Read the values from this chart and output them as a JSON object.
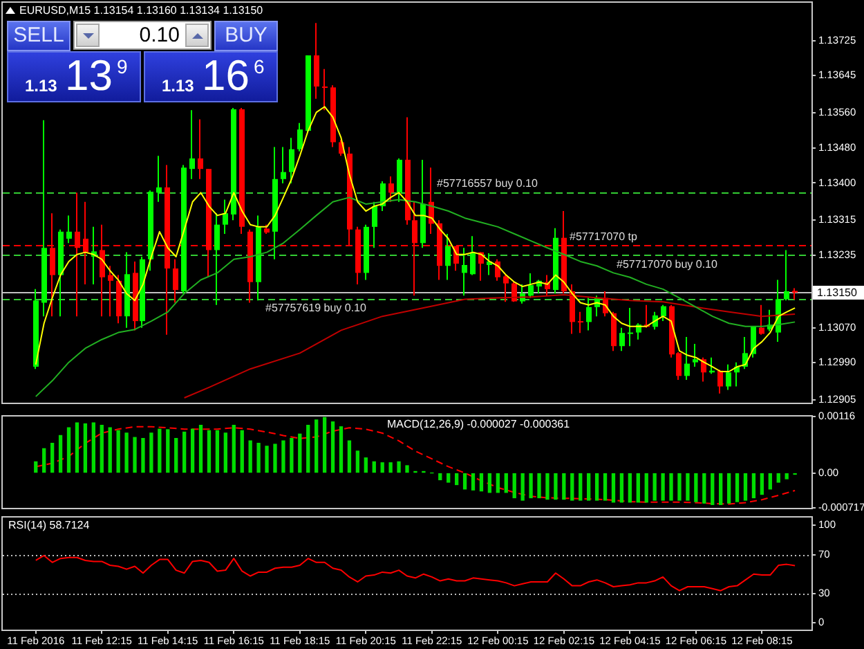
{
  "chart_data": [
    {
      "type": "candlestick",
      "title": "EURUSD,M15 1.13154 1.13160 1.13134 1.13150",
      "x": [
        "2016-02-11T10:15",
        "2016-02-11T10:30",
        "2016-02-11T10:45",
        "2016-02-11T11:00",
        "2016-02-11T11:15",
        "2016-02-11T11:30",
        "2016-02-11T11:45",
        "2016-02-11T12:00",
        "2016-02-11T12:15",
        "2016-02-11T12:30",
        "2016-02-11T12:45",
        "2016-02-11T13:00",
        "2016-02-11T13:15",
        "2016-02-11T13:30",
        "2016-02-11T13:45",
        "2016-02-11T14:00",
        "2016-02-11T14:15",
        "2016-02-11T14:30",
        "2016-02-11T14:45",
        "2016-02-11T15:00",
        "2016-02-11T15:15",
        "2016-02-11T15:30",
        "2016-02-11T15:45",
        "2016-02-11T16:00",
        "2016-02-11T16:15",
        "2016-02-11T16:30",
        "2016-02-11T16:45",
        "2016-02-11T17:00",
        "2016-02-11T17:15",
        "2016-02-11T17:30",
        "2016-02-11T17:45",
        "2016-02-11T18:00",
        "2016-02-11T18:15",
        "2016-02-11T18:30",
        "2016-02-11T18:45",
        "2016-02-11T19:00",
        "2016-02-11T19:15",
        "2016-02-11T19:30",
        "2016-02-11T19:45",
        "2016-02-11T20:00",
        "2016-02-11T20:15",
        "2016-02-11T20:30",
        "2016-02-11T20:45",
        "2016-02-11T21:00",
        "2016-02-11T21:15",
        "2016-02-11T21:30",
        "2016-02-11T21:45",
        "2016-02-11T22:00",
        "2016-02-11T22:15",
        "2016-02-11T22:30",
        "2016-02-11T22:45",
        "2016-02-11T23:00",
        "2016-02-11T23:15",
        "2016-02-11T23:30",
        "2016-02-11T23:45",
        "2016-02-12T00:00",
        "2016-02-12T00:15",
        "2016-02-12T00:30",
        "2016-02-12T00:45",
        "2016-02-12T01:00",
        "2016-02-12T01:15",
        "2016-02-12T01:30",
        "2016-02-12T01:45",
        "2016-02-12T02:00",
        "2016-02-12T02:15",
        "2016-02-12T02:30",
        "2016-02-12T02:45",
        "2016-02-12T03:00",
        "2016-02-12T03:15",
        "2016-02-12T03:30",
        "2016-02-12T03:45",
        "2016-02-12T04:00",
        "2016-02-12T04:15",
        "2016-02-12T04:30",
        "2016-02-12T04:45",
        "2016-02-12T05:00",
        "2016-02-12T05:15",
        "2016-02-12T05:30",
        "2016-02-12T05:45",
        "2016-02-12T06:00",
        "2016-02-12T06:15",
        "2016-02-12T06:30",
        "2016-02-12T06:45",
        "2016-02-12T07:00",
        "2016-02-12T07:15",
        "2016-02-12T07:30",
        "2016-02-12T07:45",
        "2016-02-12T08:00",
        "2016-02-12T08:15",
        "2016-02-12T08:30",
        "2016-02-12T08:45",
        "2016-02-12T09:00",
        "2016-02-12T09:15"
      ],
      "ohlc": [
        [
          1.12981,
          1.13158,
          1.12976,
          1.13132
        ],
        [
          1.13127,
          1.13543,
          1.13096,
          1.13252
        ],
        [
          1.13252,
          1.13331,
          1.13096,
          1.1319
        ],
        [
          1.1319,
          1.13294,
          1.13096,
          1.13289
        ],
        [
          1.13273,
          1.13326,
          1.13263,
          1.13289
        ],
        [
          1.13289,
          1.13378,
          1.13096,
          1.13252
        ],
        [
          1.13273,
          1.13357,
          1.13169,
          1.13242
        ],
        [
          1.13232,
          1.133,
          1.13169,
          1.13244
        ],
        [
          1.13247,
          1.13305,
          1.13096,
          1.13185
        ],
        [
          1.1319,
          1.13211,
          1.13096,
          1.13177
        ],
        [
          1.13177,
          1.1319,
          1.1308,
          1.13096
        ],
        [
          1.13096,
          1.13242,
          1.1307,
          1.13192
        ],
        [
          1.13195,
          1.13221,
          1.13064,
          1.13085
        ],
        [
          1.13085,
          1.13232,
          1.1307,
          1.13226
        ],
        [
          1.13226,
          1.13383,
          1.132,
          1.1338
        ],
        [
          1.13378,
          1.13462,
          1.13357,
          1.1339
        ],
        [
          1.1339,
          1.13441,
          1.13054,
          1.13205
        ],
        [
          1.13205,
          1.13226,
          1.13127,
          1.13156
        ],
        [
          1.13153,
          1.13441,
          1.13148,
          1.13435
        ],
        [
          1.13432,
          1.13566,
          1.13409,
          1.13456
        ],
        [
          1.13456,
          1.13545,
          1.13409,
          1.13432
        ],
        [
          1.13432,
          1.13432,
          1.13185,
          1.13247
        ],
        [
          1.13247,
          1.13331,
          1.13122,
          1.13305
        ],
        [
          1.13305,
          1.13362,
          1.13284,
          1.13331
        ],
        [
          1.13328,
          1.13571,
          1.13315,
          1.13568
        ],
        [
          1.13568,
          1.13571,
          1.13284,
          1.133
        ],
        [
          1.13289,
          1.13294,
          1.13127,
          1.13174
        ],
        [
          1.13174,
          1.13326,
          1.13132,
          1.133
        ],
        [
          1.13296,
          1.13305,
          1.13284,
          1.13287
        ],
        [
          1.13289,
          1.13482,
          1.13226,
          1.13409
        ],
        [
          1.13409,
          1.13482,
          1.13399,
          1.13425
        ],
        [
          1.13425,
          1.13503,
          1.13399,
          1.13477
        ],
        [
          1.13477,
          1.13537,
          1.13472,
          1.13522
        ],
        [
          1.13519,
          1.13691,
          1.13514,
          1.13691
        ],
        [
          1.13691,
          1.13765,
          1.13592,
          1.1362
        ],
        [
          1.1362,
          1.1366,
          1.13566,
          1.13618
        ],
        [
          1.13618,
          1.13623,
          1.13482,
          1.13493
        ],
        [
          1.13493,
          1.13498,
          1.13462,
          1.13467
        ],
        [
          1.13467,
          1.13482,
          1.13256,
          1.13294
        ],
        [
          1.13294,
          1.133,
          1.13169,
          1.13195
        ],
        [
          1.13195,
          1.13305,
          1.13179,
          1.133
        ],
        [
          1.133,
          1.13357,
          1.13252,
          1.13347
        ],
        [
          1.13347,
          1.13404,
          1.13336,
          1.13399
        ],
        [
          1.13399,
          1.13415,
          1.13357,
          1.13378
        ],
        [
          1.13378,
          1.13456,
          1.13357,
          1.13453
        ],
        [
          1.13453,
          1.1355,
          1.13305,
          1.13315
        ],
        [
          1.13315,
          1.13357,
          1.13143,
          1.13263
        ],
        [
          1.13263,
          1.13453,
          1.13252,
          1.13352
        ],
        [
          1.13357,
          1.13435,
          1.13284,
          1.13307
        ],
        [
          1.13308,
          1.13315,
          1.13179,
          1.13211
        ],
        [
          1.13211,
          1.13284,
          1.13179,
          1.13256
        ],
        [
          1.13256,
          1.13256,
          1.132,
          1.13216
        ],
        [
          1.13195,
          1.13252,
          1.13143,
          1.13213
        ],
        [
          1.13192,
          1.13279,
          1.1319,
          1.13242
        ],
        [
          1.13242,
          1.13242,
          1.13177,
          1.13216
        ],
        [
          1.13213,
          1.1324,
          1.1319,
          1.13221
        ],
        [
          1.13221,
          1.13226,
          1.13177,
          1.13185
        ],
        [
          1.13187,
          1.1319,
          1.13129,
          1.13171
        ],
        [
          1.13171,
          1.13174,
          1.13129,
          1.1313
        ],
        [
          1.1313,
          1.13169,
          1.13125,
          1.13148
        ],
        [
          1.13143,
          1.13194,
          1.13138,
          1.13167
        ],
        [
          1.13164,
          1.13179,
          1.13148,
          1.13177
        ],
        [
          1.13174,
          1.1319,
          1.13143,
          1.13158
        ],
        [
          1.13156,
          1.13297,
          1.13148,
          1.13275
        ],
        [
          1.13275,
          1.13336,
          1.13148,
          1.13153
        ],
        [
          1.13153,
          1.13169,
          1.13056,
          1.13083
        ],
        [
          1.13085,
          1.13106,
          1.13058,
          1.13082
        ],
        [
          1.13083,
          1.13138,
          1.13064,
          1.13117
        ],
        [
          1.13117,
          1.13143,
          1.13096,
          1.13138
        ],
        [
          1.13138,
          1.13153,
          1.13096,
          1.13103
        ],
        [
          1.13103,
          1.13106,
          1.13017,
          1.13028
        ],
        [
          1.13028,
          1.1307,
          1.13017,
          1.13058
        ],
        [
          1.13056,
          1.13115,
          1.13028,
          1.13059
        ],
        [
          1.13059,
          1.1308,
          1.13043,
          1.13077
        ],
        [
          1.13077,
          1.13122,
          1.1307,
          1.13072
        ],
        [
          1.13072,
          1.13106,
          1.13066,
          1.13098
        ],
        [
          1.13096,
          1.13122,
          1.13085,
          1.13119
        ],
        [
          1.13119,
          1.13122,
          1.13002,
          1.13009
        ],
        [
          1.13012,
          1.13014,
          1.12951,
          1.1296
        ],
        [
          1.1296,
          1.13049,
          1.12951,
          1.12988
        ],
        [
          1.12991,
          1.13033,
          1.12981,
          1.12998
        ],
        [
          1.12998,
          1.13002,
          1.12947,
          1.12968
        ],
        [
          1.12968,
          1.13002,
          1.12965,
          1.12972
        ],
        [
          1.12972,
          1.12974,
          1.1292,
          1.12936
        ],
        [
          1.12936,
          1.12986,
          1.12928,
          1.12968
        ],
        [
          1.12968,
          1.12991,
          1.12936,
          1.12981
        ],
        [
          1.12981,
          1.13049,
          1.12976,
          1.13012
        ],
        [
          1.1301,
          1.13073,
          1.13002,
          1.13073
        ],
        [
          1.1307,
          1.13122,
          1.13054,
          1.13056
        ],
        [
          1.13066,
          1.13111,
          1.13062,
          1.13077
        ],
        [
          1.13059,
          1.13179,
          1.13038,
          1.13135
        ],
        [
          1.13135,
          1.13247,
          1.13132,
          1.13153
        ],
        [
          1.13154,
          1.1316,
          1.13134,
          1.1315
        ]
      ],
      "colors": [
        "#00ff00",
        "#00ff00",
        "#ff0000",
        "#00ff00",
        "#00ff00",
        "#ff0000",
        "#ff0000",
        "#00ff00",
        "#ff0000",
        "#ff0000",
        "#ff0000",
        "#00ff00",
        "#ff0000",
        "#00ff00",
        "#00ff00",
        "#00ff00",
        "#ff0000",
        "#ff0000",
        "#00ff00",
        "#00ff00",
        "#ff0000",
        "#ff0000",
        "#00ff00",
        "#00ff00",
        "#00ff00",
        "#ff0000",
        "#ff0000",
        "#00ff00",
        "#ff0000",
        "#00ff00",
        "#00ff00",
        "#00ff00",
        "#00ff00",
        "#00ff00",
        "#ff0000",
        "#ff0000",
        "#ff0000",
        "#ff0000",
        "#ff0000",
        "#ff0000",
        "#00ff00",
        "#00ff00",
        "#00ff00",
        "#ff0000",
        "#00ff00",
        "#ff0000",
        "#ff0000",
        "#00ff00",
        "#ff0000",
        "#ff0000",
        "#00ff00",
        "#ff0000",
        "#00ff00",
        "#00ff00",
        "#ff0000",
        "#00ff00",
        "#ff0000",
        "#ff0000",
        "#ff0000",
        "#00ff00",
        "#00ff00",
        "#00ff00",
        "#ff0000",
        "#00ff00",
        "#ff0000",
        "#ff0000",
        "#ff0000",
        "#00ff00",
        "#00ff00",
        "#ff0000",
        "#ff0000",
        "#00ff00",
        "#00ff00",
        "#00ff00",
        "#ff0000",
        "#00ff00",
        "#00ff00",
        "#ff0000",
        "#ff0000",
        "#00ff00",
        "#00ff00",
        "#ff0000",
        "#00ff00",
        "#ff0000",
        "#00ff00",
        "#00ff00",
        "#00ff00",
        "#00ff00",
        "#ff0000",
        "#00ff00",
        "#00ff00",
        "#00ff00",
        "#ff0000"
      ],
      "series": [
        {
          "type": "line",
          "color": "#ffff00",
          "values": [
            1.12986,
            1.1308,
            1.13138,
            1.1319,
            1.13221,
            1.13237,
            1.13242,
            1.13237,
            1.13226,
            1.132,
            1.13179,
            1.13148,
            1.13132,
            1.13169,
            1.13232,
            1.13289,
            1.13252,
            1.13232,
            1.13294,
            1.13357,
            1.13378,
            1.13347,
            1.13326,
            1.13331,
            1.13378,
            1.13336,
            1.13305,
            1.133,
            1.133,
            1.13326,
            1.13367,
            1.13409,
            1.13462,
            1.13519,
            1.13561,
            1.13574,
            1.1355,
            1.13503,
            1.1342,
            1.13357,
            1.13336,
            1.13347,
            1.13352,
            1.13367,
            1.13378,
            1.13357,
            1.13326,
            1.13326,
            1.1332,
            1.13294,
            1.13273,
            1.13237,
            1.13237,
            1.13242,
            1.13237,
            1.13221,
            1.13211,
            1.1319,
            1.13174,
            1.13164,
            1.13169,
            1.13174,
            1.13169,
            1.1319,
            1.13174,
            1.13148,
            1.13127,
            1.13122,
            1.13127,
            1.13122,
            1.13096,
            1.1308,
            1.13073,
            1.13073,
            1.13073,
            1.13085,
            1.13096,
            1.13085,
            1.13017,
            1.13007,
            1.13002,
            1.12991,
            1.12981,
            1.1297,
            1.1297,
            1.12981,
            1.12986,
            1.13023,
            1.13038,
            1.13059,
            1.13096,
            1.13106,
            1.13115
          ]
        },
        {
          "type": "line",
          "color": "#22b022",
          "x": [
            "2016-02-11T10:15",
            "2016-02-11T10:45",
            "2016-02-11T11:15",
            "2016-02-11T11:45",
            "2016-02-11T12:15",
            "2016-02-11T12:45",
            "2016-02-11T13:15",
            "2016-02-11T13:45",
            "2016-02-11T14:15",
            "2016-02-11T14:45",
            "2016-02-11T15:15",
            "2016-02-11T15:45",
            "2016-02-11T16:15",
            "2016-02-11T16:45",
            "2016-02-11T17:15",
            "2016-02-11T17:45",
            "2016-02-11T18:15",
            "2016-02-11T18:45",
            "2016-02-11T19:15",
            "2016-02-11T19:45",
            "2016-02-11T20:15",
            "2016-02-11T20:45",
            "2016-02-11T21:15",
            "2016-02-11T21:45",
            "2016-02-11T22:15",
            "2016-02-11T22:45",
            "2016-02-11T23:15",
            "2016-02-11T23:45",
            "2016-02-12T00:15",
            "2016-02-12T00:45",
            "2016-02-12T01:15",
            "2016-02-12T01:45",
            "2016-02-12T02:15",
            "2016-02-12T02:45",
            "2016-02-12T03:15",
            "2016-02-12T03:45",
            "2016-02-12T04:15",
            "2016-02-12T04:45",
            "2016-02-12T05:15",
            "2016-02-12T05:45",
            "2016-02-12T06:15",
            "2016-02-12T06:45",
            "2016-02-12T07:15",
            "2016-02-12T07:45",
            "2016-02-12T08:15",
            "2016-02-12T08:45",
            "2016-02-12T09:15"
          ],
          "values": [
            1.12913,
            1.12949,
            1.12991,
            1.13023,
            1.13043,
            1.13059,
            1.13066,
            1.13085,
            1.13106,
            1.13148,
            1.13179,
            1.13195,
            1.13226,
            1.13232,
            1.13242,
            1.13263,
            1.13294,
            1.13326,
            1.13357,
            1.13367,
            1.13352,
            1.13357,
            1.13362,
            1.13357,
            1.13347,
            1.13336,
            1.1332,
            1.1331,
            1.133,
            1.13284,
            1.13268,
            1.13252,
            1.13237,
            1.13221,
            1.13211,
            1.13195,
            1.13185,
            1.13169,
            1.13158,
            1.13138,
            1.13117,
            1.13096,
            1.1308,
            1.13073,
            1.13073,
            1.13077,
            1.13083
          ]
        },
        {
          "type": "line",
          "color": "#c00000",
          "x": [
            "2016-02-11T14:45",
            "2016-02-11T15:30",
            "2016-02-11T16:45",
            "2016-02-11T18:15",
            "2016-02-11T19:30",
            "2016-02-11T20:45",
            "2016-02-11T22:15",
            "2016-02-11T23:15",
            "2016-02-12T00:15",
            "2016-02-12T01:15",
            "2016-02-12T02:15",
            "2016-02-12T03:15",
            "2016-02-12T04:15",
            "2016-02-12T05:15",
            "2016-02-12T06:15",
            "2016-02-12T07:15",
            "2016-02-12T08:15",
            "2016-02-12T09:15"
          ],
          "values": [
            1.1291,
            1.12934,
            1.12976,
            1.13012,
            1.13064,
            1.13096,
            1.13119,
            1.13135,
            1.13138,
            1.1314,
            1.13145,
            1.13138,
            1.13132,
            1.13129,
            1.13117,
            1.13106,
            1.13096,
            1.13101
          ]
        }
      ],
      "xlim": [
        "2016-02-11T09:15",
        "2016-02-12T09:45"
      ],
      "ylim": [
        1.12899,
        1.13811
      ],
      "yticks": [
        1.12905,
        {
          "value": 1.1299,
          "label": "1.12990"
        },
        {
          "value": 1.1307,
          "label": "1.13070"
        },
        1.13235,
        1.13315,
        {
          "value": 1.134,
          "label": "1.13400"
        },
        {
          "value": 1.1348,
          "label": "1.13480"
        },
        {
          "value": 1.1356,
          "label": "1.13560"
        },
        1.13645,
        1.13725
      ],
      "ref_lines": [
        {
          "axis": "y",
          "value": 1.1338,
          "label": "#57716557 buy 0.10",
          "color": "#33cc33",
          "line_style": "dashed"
        },
        {
          "axis": "y",
          "value": 1.13258,
          "label": "#57717070 tp",
          "color": "#ff0000",
          "line_style": "dashed"
        },
        {
          "axis": "y",
          "value": 1.13236,
          "label": "#57717070 buy 0.10",
          "color": "#33cc33",
          "line_style": "dashed"
        },
        {
          "axis": "y",
          "value": 1.13136,
          "label": "#57757619 buy 0.10",
          "color": "#33cc33",
          "line_style": "dashed"
        },
        {
          "axis": "y",
          "value": 1.1315,
          "label": "1.13150",
          "color": "#c0c0c0"
        }
      ],
      "annotations": [
        "SELL",
        "0.10",
        "BUY",
        "1.13 13$^{9}$",
        "1.13 16$^{6}$"
      ],
      "tick_labels": "y"
    },
    {
      "type": "bar",
      "title": "MACD(12,26,9) -0.000027 -0.000361",
      "x": [
        "2016-02-11T10:15",
        "2016-02-11T10:30",
        "2016-02-11T10:45",
        "2016-02-11T11:00",
        "2016-02-11T11:15",
        "2016-02-11T11:30",
        "2016-02-11T11:45",
        "2016-02-11T12:00",
        "2016-02-11T12:15",
        "2016-02-11T12:30",
        "2016-02-11T12:45",
        "2016-02-11T13:00",
        "2016-02-11T13:15",
        "2016-02-11T13:30",
        "2016-02-11T13:45",
        "2016-02-11T14:00",
        "2016-02-11T14:15",
        "2016-02-11T14:30",
        "2016-02-11T14:45",
        "2016-02-11T15:00",
        "2016-02-11T15:15",
        "2016-02-11T15:30",
        "2016-02-11T15:45",
        "2016-02-11T16:00",
        "2016-02-11T16:15",
        "2016-02-11T16:30",
        "2016-02-11T16:45",
        "2016-02-11T17:00",
        "2016-02-11T17:15",
        "2016-02-11T17:30",
        "2016-02-11T17:45",
        "2016-02-11T18:00",
        "2016-02-11T18:15",
        "2016-02-11T18:30",
        "2016-02-11T18:45",
        "2016-02-11T19:00",
        "2016-02-11T19:15",
        "2016-02-11T19:30",
        "2016-02-11T19:45",
        "2016-02-11T20:00",
        "2016-02-11T20:15",
        "2016-02-11T20:30",
        "2016-02-11T20:45",
        "2016-02-11T21:00",
        "2016-02-11T21:15",
        "2016-02-11T21:30",
        "2016-02-11T21:45",
        "2016-02-11T22:00",
        "2016-02-11T22:15",
        "2016-02-11T22:30",
        "2016-02-11T22:45",
        "2016-02-11T23:00",
        "2016-02-11T23:15",
        "2016-02-11T23:30",
        "2016-02-11T23:45",
        "2016-02-12T00:00",
        "2016-02-12T00:15",
        "2016-02-12T00:30",
        "2016-02-12T00:45",
        "2016-02-12T01:00",
        "2016-02-12T01:15",
        "2016-02-12T01:30",
        "2016-02-12T01:45",
        "2016-02-12T02:00",
        "2016-02-12T02:15",
        "2016-02-12T02:30",
        "2016-02-12T02:45",
        "2016-02-12T03:00",
        "2016-02-12T03:15",
        "2016-02-12T03:30",
        "2016-02-12T03:45",
        "2016-02-12T04:00",
        "2016-02-12T04:15",
        "2016-02-12T04:30",
        "2016-02-12T04:45",
        "2016-02-12T05:00",
        "2016-02-12T05:15",
        "2016-02-12T05:30",
        "2016-02-12T05:45",
        "2016-02-12T06:00",
        "2016-02-12T06:15",
        "2016-02-12T06:30",
        "2016-02-12T06:45",
        "2016-02-12T07:00",
        "2016-02-12T07:15",
        "2016-02-12T07:30",
        "2016-02-12T07:45",
        "2016-02-12T08:00",
        "2016-02-12T08:15",
        "2016-02-12T08:30",
        "2016-02-12T08:45",
        "2016-02-12T09:00",
        "2016-02-12T09:15"
      ],
      "series": [
        {
          "color": "#00dd00",
          "values": [
            0.00023,
            0.0005,
            0.00061,
            0.00077,
            0.00093,
            0.00103,
            0.00101,
            0.00103,
            0.00098,
            0.00093,
            0.00087,
            0.00082,
            0.00073,
            0.00071,
            0.00082,
            0.0009,
            0.00089,
            0.00071,
            0.00084,
            0.0009,
            0.00098,
            0.00087,
            0.00087,
            0.00082,
            0.00098,
            0.00087,
            0.00066,
            0.00061,
            0.00055,
            0.00059,
            0.00066,
            0.00071,
            0.0008,
            0.00098,
            0.00109,
            0.00114,
            0.00105,
            0.00095,
            0.00066,
            0.00045,
            0.00031,
            0.00023,
            0.00021,
            0.00021,
            0.00023,
            0.00015,
            3e-05,
            3e-05,
            0,
            -0.00014,
            -0.00019,
            -0.00024,
            -0.00033,
            -0.00035,
            -0.00037,
            -0.0004,
            -0.0004,
            -0.0004,
            -0.00051,
            -0.00056,
            -0.00051,
            -0.00051,
            -0.00054,
            -0.00054,
            -0.00054,
            -0.00056,
            -0.00056,
            -0.00056,
            -0.00056,
            -0.00056,
            -0.0006,
            -0.0006,
            -0.0006,
            -0.0006,
            -0.0006,
            -0.00056,
            -0.00056,
            -0.00056,
            -0.00056,
            -0.00056,
            -0.00059,
            -0.00062,
            -0.00065,
            -0.00065,
            -0.00062,
            -0.00059,
            -0.00056,
            -0.00051,
            -0.00044,
            -0.00033,
            -0.00019,
            -0.00012,
            -2.7e-05
          ]
        },
        {
          "type": "line",
          "color": "#ff0000",
          "line_style": "dashed",
          "x": [
            "2016-02-11T10:15",
            "2016-02-11T10:45",
            "2016-02-11T11:15",
            "2016-02-11T11:45",
            "2016-02-11T12:15",
            "2016-02-11T12:45",
            "2016-02-11T13:15",
            "2016-02-11T13:45",
            "2016-02-11T14:15",
            "2016-02-11T14:45",
            "2016-02-11T15:15",
            "2016-02-11T15:45",
            "2016-02-11T16:15",
            "2016-02-11T16:45",
            "2016-02-11T17:15",
            "2016-02-11T17:45",
            "2016-02-11T18:15",
            "2016-02-11T18:45",
            "2016-02-11T19:15",
            "2016-02-11T19:45",
            "2016-02-11T20:15",
            "2016-02-11T20:45",
            "2016-02-11T21:15",
            "2016-02-11T21:45",
            "2016-02-11T22:15",
            "2016-02-11T22:45",
            "2016-02-11T23:15",
            "2016-02-11T23:45",
            "2016-02-12T00:15",
            "2016-02-12T00:45",
            "2016-02-12T01:15",
            "2016-02-12T01:45",
            "2016-02-12T02:15",
            "2016-02-12T02:45",
            "2016-02-12T03:15",
            "2016-02-12T03:45",
            "2016-02-12T04:15",
            "2016-02-12T04:45",
            "2016-02-12T05:15",
            "2016-02-12T05:45",
            "2016-02-12T06:15",
            "2016-02-12T06:45",
            "2016-02-12T07:15",
            "2016-02-12T07:45",
            "2016-02-12T08:15",
            "2016-02-12T08:45",
            "2016-02-12T09:15"
          ],
          "values": [
            0.00013,
            0.0002,
            0.00034,
            0.00061,
            0.00082,
            0.0009,
            0.00095,
            0.00095,
            0.00093,
            0.0009,
            0.0009,
            0.0009,
            0.00093,
            0.0009,
            0.00084,
            0.00077,
            0.00071,
            0.00074,
            0.00086,
            0.00093,
            0.0009,
            0.00082,
            0.00066,
            0.00045,
            0.00029,
            0.00013,
            0,
            -0.00016,
            -0.0003,
            -0.0004,
            -0.00048,
            -0.00051,
            -0.00052,
            -0.00053,
            -0.00054,
            -0.00056,
            -0.00059,
            -0.0006,
            -0.0006,
            -0.0006,
            -0.00061,
            -0.00063,
            -0.00064,
            -0.00061,
            -0.00055,
            -0.00046,
            -0.000361
          ]
        }
      ],
      "xlim": [
        "2016-02-11T09:15",
        "2016-02-12T09:45"
      ],
      "ylim": [
        -0.000717,
        0.00116
      ],
      "yticks": [
        -0.000717,
        {
          "value": 0,
          "label": "0.00"
        },
        0.00116
      ],
      "tick_labels": "y"
    },
    {
      "type": "line",
      "title": "RSI(14) 58.7124",
      "x": [
        "2016-02-11T10:15",
        "2016-02-11T10:30",
        "2016-02-11T10:45",
        "2016-02-11T11:00",
        "2016-02-11T11:15",
        "2016-02-11T11:30",
        "2016-02-11T11:45",
        "2016-02-11T12:00",
        "2016-02-11T12:15",
        "2016-02-11T12:30",
        "2016-02-11T12:45",
        "2016-02-11T13:00",
        "2016-02-11T13:15",
        "2016-02-11T13:30",
        "2016-02-11T13:45",
        "2016-02-11T14:00",
        "2016-02-11T14:15",
        "2016-02-11T14:30",
        "2016-02-11T14:45",
        "2016-02-11T15:00",
        "2016-02-11T15:15",
        "2016-02-11T15:30",
        "2016-02-11T15:45",
        "2016-02-11T16:00",
        "2016-02-11T16:15",
        "2016-02-11T16:30",
        "2016-02-11T16:45",
        "2016-02-11T17:00",
        "2016-02-11T17:15",
        "2016-02-11T17:30",
        "2016-02-11T17:45",
        "2016-02-11T18:00",
        "2016-02-11T18:15",
        "2016-02-11T18:30",
        "2016-02-11T18:45",
        "2016-02-11T19:00",
        "2016-02-11T19:15",
        "2016-02-11T19:30",
        "2016-02-11T19:45",
        "2016-02-11T20:00",
        "2016-02-11T20:15",
        "2016-02-11T20:30",
        "2016-02-11T20:45",
        "2016-02-11T21:00",
        "2016-02-11T21:15",
        "2016-02-11T21:30",
        "2016-02-11T21:45",
        "2016-02-11T22:00",
        "2016-02-11T22:15",
        "2016-02-11T22:30",
        "2016-02-11T22:45",
        "2016-02-11T23:00",
        "2016-02-11T23:15",
        "2016-02-11T23:30",
        "2016-02-11T23:45",
        "2016-02-12T00:00",
        "2016-02-12T00:15",
        "2016-02-12T00:30",
        "2016-02-12T00:45",
        "2016-02-12T01:00",
        "2016-02-12T01:15",
        "2016-02-12T01:30",
        "2016-02-12T01:45",
        "2016-02-12T02:00",
        "2016-02-12T02:15",
        "2016-02-12T02:30",
        "2016-02-12T02:45",
        "2016-02-12T03:00",
        "2016-02-12T03:15",
        "2016-02-12T03:30",
        "2016-02-12T03:45",
        "2016-02-12T04:00",
        "2016-02-12T04:15",
        "2016-02-12T04:30",
        "2016-02-12T04:45",
        "2016-02-12T05:00",
        "2016-02-12T05:15",
        "2016-02-12T05:30",
        "2016-02-12T05:45",
        "2016-02-12T06:00",
        "2016-02-12T06:15",
        "2016-02-12T06:30",
        "2016-02-12T06:45",
        "2016-02-12T07:00",
        "2016-02-12T07:15",
        "2016-02-12T07:30",
        "2016-02-12T07:45",
        "2016-02-12T08:00",
        "2016-02-12T08:15",
        "2016-02-12T08:30",
        "2016-02-12T08:45",
        "2016-02-12T09:00",
        "2016-02-12T09:15"
      ],
      "series": [
        {
          "color": "#ff0000",
          "values": [
            64,
            69,
            62,
            66,
            67,
            67,
            64,
            63,
            63,
            59,
            58,
            55,
            58,
            51,
            59,
            65,
            65,
            54,
            51,
            63,
            64,
            62,
            53,
            54,
            66,
            53,
            48,
            52,
            52,
            56,
            57,
            57,
            59,
            66,
            62,
            62,
            56,
            54,
            47,
            42,
            48,
            49,
            52,
            51,
            54,
            48,
            46,
            50,
            47,
            43,
            45,
            43,
            43,
            46,
            45,
            44,
            43,
            41,
            38,
            40,
            42,
            42,
            42,
            51,
            45,
            38,
            38,
            42,
            44,
            41,
            37,
            38,
            39,
            41,
            41,
            43,
            47,
            38,
            33,
            37,
            37,
            37,
            35,
            33,
            37,
            38,
            44,
            50,
            49,
            49,
            59,
            60,
            58.7124
          ]
        }
      ],
      "xlim": [
        "2016-02-11T09:15",
        "2016-02-12T09:45"
      ],
      "ylim": [
        -7,
        108
      ],
      "yticks": [
        0,
        30,
        70,
        100
      ],
      "xticks": [
        {
          "value": "2016-02-11T10:15",
          "label": "11 Feb 2016"
        },
        {
          "value": "2016-02-11T12:15",
          "label": "11 Feb 12:15"
        },
        {
          "value": "2016-02-11T14:15",
          "label": "11 Feb 14:15"
        },
        {
          "value": "2016-02-11T16:15",
          "label": "11 Feb 16:15"
        },
        {
          "value": "2016-02-11T18:15",
          "label": "11 Feb 18:15"
        },
        {
          "value": "2016-02-11T20:15",
          "label": "11 Feb 20:15"
        },
        {
          "value": "2016-02-11T22:15",
          "label": "11 Feb 22:15"
        },
        {
          "value": "2016-02-12T00:15",
          "label": "12 Feb 00:15"
        },
        {
          "value": "2016-02-12T02:15",
          "label": "12 Feb 02:15"
        },
        {
          "value": "2016-02-12T04:15",
          "label": "12 Feb 04:15"
        },
        {
          "value": "2016-02-12T06:15",
          "label": "12 Feb 06:15"
        },
        {
          "value": "2016-02-12T08:15",
          "label": "12 Feb 08:15"
        }
      ],
      "ref_lines": [
        {
          "axis": "y",
          "value": 70,
          "color": "#c0c0c0",
          "line_style": "dotted"
        },
        {
          "axis": "y",
          "value": 30,
          "color": "#c0c0c0",
          "line_style": "dotted"
        }
      ]
    }
  ]
}
